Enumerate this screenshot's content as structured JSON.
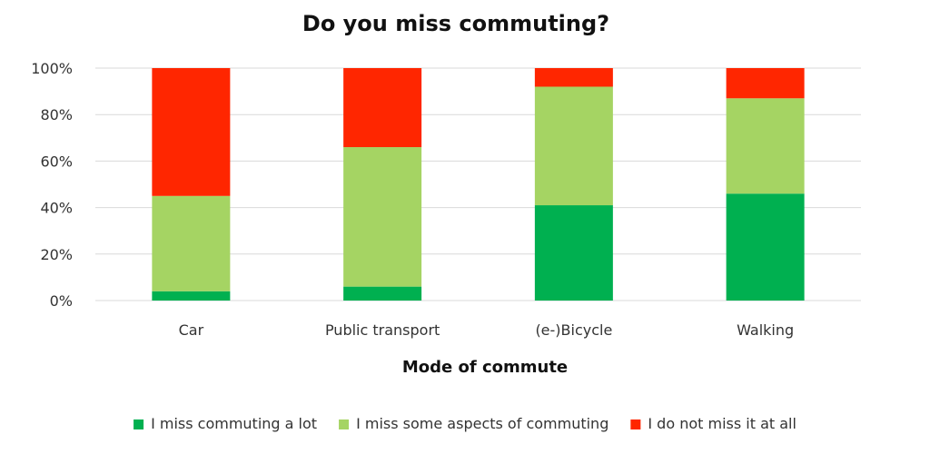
{
  "chart_data": {
    "type": "bar",
    "stacked": true,
    "title": "Do you miss commuting?",
    "xlabel": "Mode of commute",
    "ylabel": "",
    "ylim": [
      0,
      100
    ],
    "yticks": [
      "0%",
      "20%",
      "40%",
      "60%",
      "80%",
      "100%"
    ],
    "grid": true,
    "legend_position": "bottom",
    "categories": [
      "Car",
      "Public transport",
      "(e-)Bicycle",
      "Walking"
    ],
    "series": [
      {
        "name": "I miss commuting a lot",
        "color": "#00b050",
        "values": [
          4,
          6,
          41,
          46
        ]
      },
      {
        "name": "I miss some aspects of commuting",
        "color": "#a5d463",
        "values": [
          41,
          60,
          51,
          41
        ]
      },
      {
        "name": "I do not miss it at all",
        "color": "#ff2600",
        "values": [
          55,
          34,
          8,
          13
        ]
      }
    ]
  }
}
